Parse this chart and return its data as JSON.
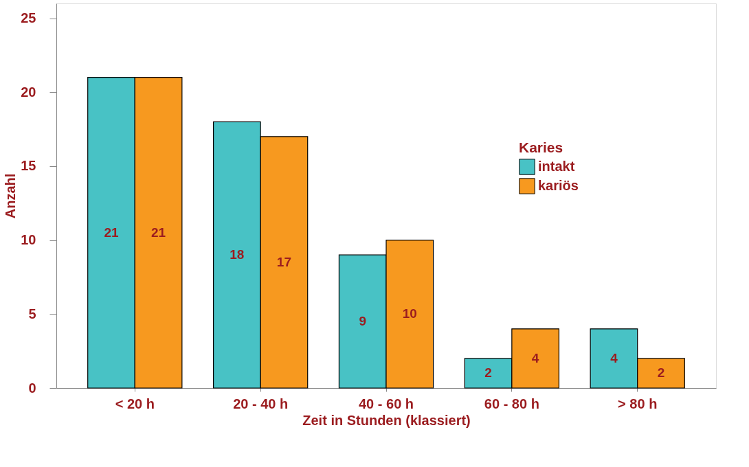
{
  "chart_data": {
    "type": "bar",
    "xlabel": "Zeit in Stunden (klassiert)",
    "ylabel": "Anzahl",
    "legend_title": "Karies",
    "categories": [
      "< 20 h",
      "20 - 40 h",
      "40 - 60 h",
      "60 - 80 h",
      "> 80 h"
    ],
    "series": [
      {
        "name": "intakt",
        "color": "#48c2c5",
        "values": [
          21,
          18,
          9,
          2,
          4
        ]
      },
      {
        "name": "kariös",
        "color": "#f7991f",
        "values": [
          21,
          17,
          10,
          4,
          2
        ]
      }
    ],
    "ylim": [
      0,
      26
    ],
    "yticks": [
      0,
      5,
      10,
      15,
      20,
      25
    ],
    "grid": false,
    "legend": "top right",
    "data_labels": true
  }
}
